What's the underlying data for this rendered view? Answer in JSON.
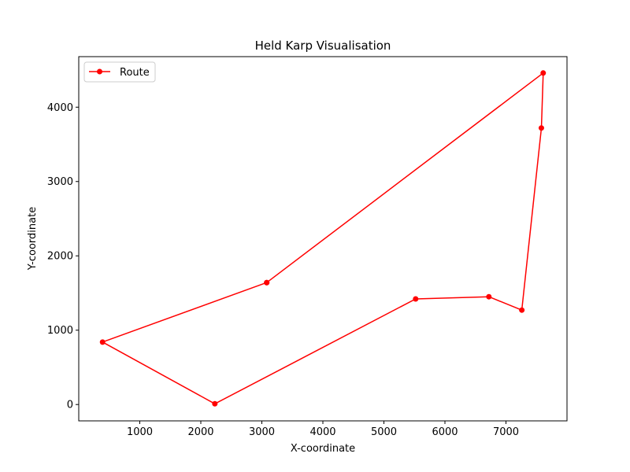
{
  "chart_data": {
    "type": "line",
    "title": "Held Karp Visualisation",
    "xlabel": "X-coordinate",
    "ylabel": "Y-coordinate",
    "xlim": [
      0,
      8000
    ],
    "ylim": [
      -220,
      4680
    ],
    "xticks": [
      1000,
      2000,
      3000,
      4000,
      5000,
      6000,
      7000
    ],
    "yticks": [
      0,
      1000,
      2000,
      3000,
      4000
    ],
    "grid": false,
    "legend_position": "top-left",
    "series": [
      {
        "name": "Route",
        "color": "#ff0000",
        "marker": "circle",
        "points": [
          {
            "x": 3080,
            "y": 1640
          },
          {
            "x": 7610,
            "y": 4460
          },
          {
            "x": 7580,
            "y": 3720
          },
          {
            "x": 7260,
            "y": 1270
          },
          {
            "x": 6720,
            "y": 1450
          },
          {
            "x": 5520,
            "y": 1420
          },
          {
            "x": 2230,
            "y": 10
          },
          {
            "x": 390,
            "y": 840
          },
          {
            "x": 3080,
            "y": 1640
          }
        ]
      }
    ]
  }
}
